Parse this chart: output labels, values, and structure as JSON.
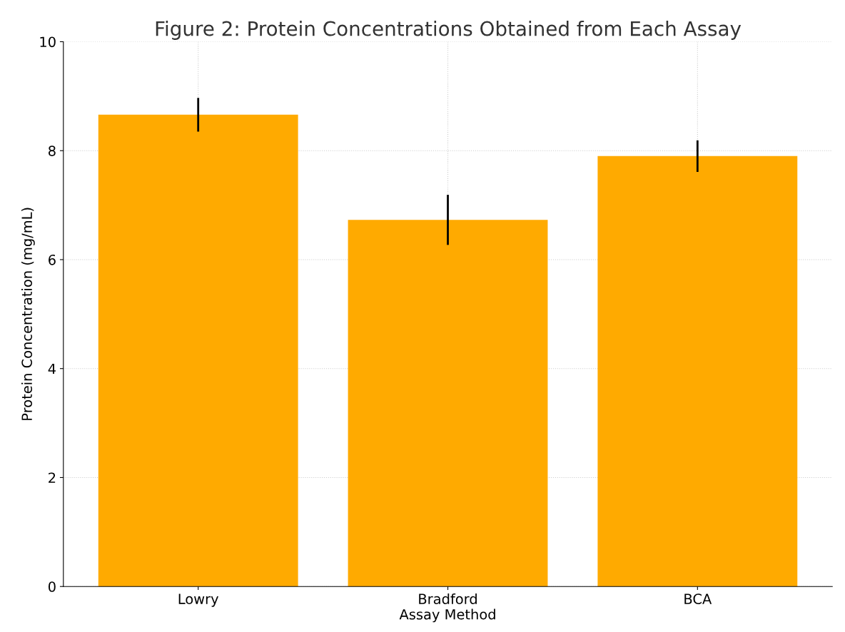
{
  "chart_data": {
    "type": "bar",
    "title": "Figure 2: Protein Concentrations Obtained from Each Assay",
    "xlabel": "Assay Method",
    "ylabel": "Protein Concentration (mg/mL)",
    "categories": [
      "Lowry",
      "Bradford",
      "BCA"
    ],
    "values": [
      8.66,
      6.73,
      7.9
    ],
    "errors": [
      0.31,
      0.46,
      0.29
    ],
    "color": "#ffaa00",
    "ylim": [
      0,
      10
    ],
    "yticks": [
      0,
      2,
      4,
      6,
      8,
      10
    ],
    "grid": true
  }
}
